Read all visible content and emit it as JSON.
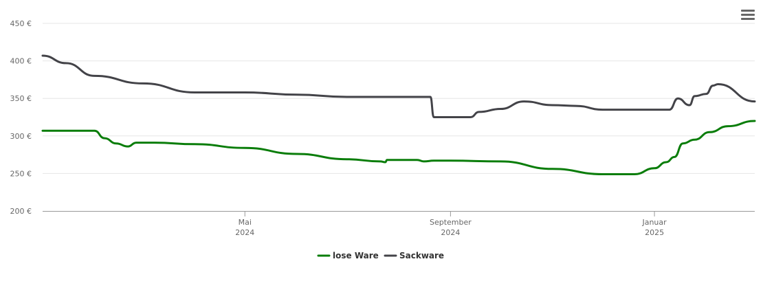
{
  "menu": {
    "icon": "hamburger-menu-icon"
  },
  "chart_data": {
    "type": "line",
    "title": "",
    "xlabel": "",
    "ylabel": "",
    "ylim": [
      200,
      450
    ],
    "xlim": [
      "2024-01-01",
      "2025-03-02"
    ],
    "y_ticks": [
      {
        "value": 200,
        "label": "200 €"
      },
      {
        "value": 250,
        "label": "250 €"
      },
      {
        "value": 300,
        "label": "300 €"
      },
      {
        "value": 350,
        "label": "350 €"
      },
      {
        "value": 400,
        "label": "400 €"
      },
      {
        "value": 450,
        "label": "450 €"
      }
    ],
    "x_ticks": [
      {
        "date": "2024-05-01",
        "month": "Mai",
        "year": "2024"
      },
      {
        "date": "2024-09-01",
        "month": "September",
        "year": "2024"
      },
      {
        "date": "2025-01-01",
        "month": "Januar",
        "year": "2025"
      }
    ],
    "grid": "horizontal",
    "legend_position": "bottom-center",
    "series": [
      {
        "name": "lose Ware",
        "color": "#0a7d0a",
        "points": [
          [
            "2024-01-01",
            307
          ],
          [
            "2024-01-26",
            307
          ],
          [
            "2024-02-01",
            307
          ],
          [
            "2024-02-07",
            297
          ],
          [
            "2024-02-14",
            290
          ],
          [
            "2024-02-21",
            286
          ],
          [
            "2024-02-26",
            291
          ],
          [
            "2024-03-08",
            291
          ],
          [
            "2024-04-01",
            289
          ],
          [
            "2024-05-01",
            284
          ],
          [
            "2024-06-01",
            276
          ],
          [
            "2024-07-01",
            269
          ],
          [
            "2024-07-21",
            266
          ],
          [
            "2024-07-24",
            265
          ],
          [
            "2024-07-25",
            268
          ],
          [
            "2024-08-12",
            268
          ],
          [
            "2024-08-16",
            266
          ],
          [
            "2024-08-22",
            267
          ],
          [
            "2024-09-01",
            267
          ],
          [
            "2024-10-01",
            266
          ],
          [
            "2024-11-01",
            256
          ],
          [
            "2024-12-01",
            249
          ],
          [
            "2024-12-20",
            249
          ],
          [
            "2025-01-01",
            257
          ],
          [
            "2025-01-08",
            265
          ],
          [
            "2025-01-13",
            272
          ],
          [
            "2025-01-18",
            290
          ],
          [
            "2025-01-25",
            295
          ],
          [
            "2025-02-03",
            305
          ],
          [
            "2025-02-14",
            313
          ],
          [
            "2025-03-02",
            320
          ]
        ]
      },
      {
        "name": "Sackware",
        "color": "#434348",
        "points": [
          [
            "2024-01-01",
            407
          ],
          [
            "2024-01-15",
            397
          ],
          [
            "2024-02-01",
            380
          ],
          [
            "2024-03-01",
            370
          ],
          [
            "2024-04-01",
            358
          ],
          [
            "2024-05-01",
            358
          ],
          [
            "2024-06-01",
            355
          ],
          [
            "2024-07-01",
            352
          ],
          [
            "2024-08-01",
            352
          ],
          [
            "2024-08-20",
            352
          ],
          [
            "2024-08-22",
            325
          ],
          [
            "2024-09-01",
            325
          ],
          [
            "2024-09-10",
            325
          ],
          [
            "2024-09-13",
            325
          ],
          [
            "2024-09-18",
            332
          ],
          [
            "2024-10-01",
            336
          ],
          [
            "2024-10-15",
            346
          ],
          [
            "2024-11-01",
            341
          ],
          [
            "2024-11-15",
            340
          ],
          [
            "2024-12-01",
            335
          ],
          [
            "2024-12-15",
            335
          ],
          [
            "2025-01-01",
            335
          ],
          [
            "2025-01-10",
            335
          ],
          [
            "2025-01-15",
            350
          ],
          [
            "2025-01-22",
            341
          ],
          [
            "2025-01-25",
            353
          ],
          [
            "2025-02-01",
            356
          ],
          [
            "2025-02-05",
            367
          ],
          [
            "2025-02-08",
            369
          ],
          [
            "2025-03-02",
            346
          ]
        ]
      }
    ]
  }
}
